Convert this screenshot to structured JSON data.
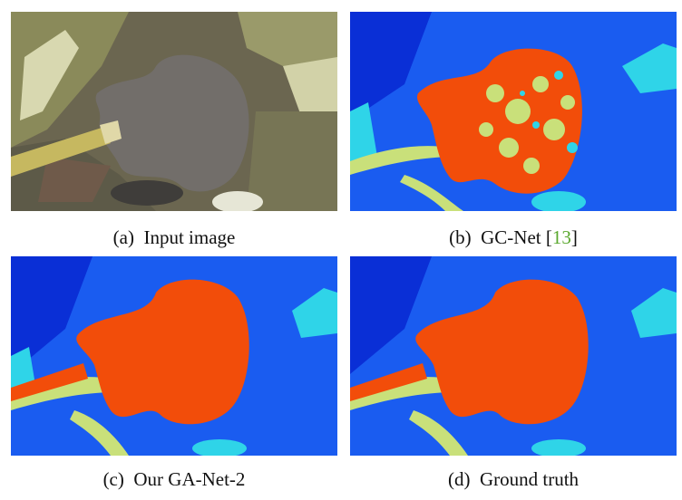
{
  "figure": {
    "panels": [
      {
        "id": "a",
        "caption_prefix": "(a)",
        "caption_text": "Input image"
      },
      {
        "id": "b",
        "caption_prefix": "(b)",
        "caption_text": "GC-Net [",
        "citation": "13",
        "caption_suffix": "]"
      },
      {
        "id": "c",
        "caption_prefix": "(c)",
        "caption_text": "Our GA-Net-2"
      },
      {
        "id": "d",
        "caption_prefix": "(d)",
        "caption_text": "Ground truth"
      }
    ],
    "colors": {
      "citation": "#5aa82e",
      "disparity_far": "#0a2fd6",
      "disparity_mid": "#1a5cf0",
      "disparity_cyan": "#2fd4e8",
      "disparity_yellow": "#c9e07a",
      "disparity_near": "#f24d0a"
    }
  }
}
